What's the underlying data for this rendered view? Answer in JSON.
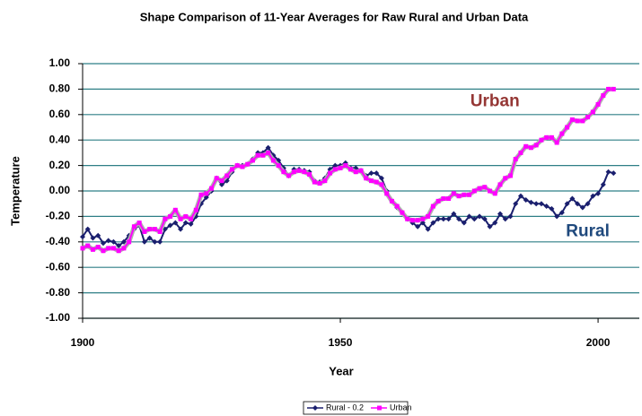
{
  "chart_data": {
    "type": "line",
    "title": "Shape Comparison of 11-Year Averages for Raw Rural and Urban Data",
    "x_label": "Year",
    "y_label": "Temperature",
    "x": [
      1900,
      1901,
      1902,
      1903,
      1904,
      1905,
      1906,
      1907,
      1908,
      1909,
      1910,
      1911,
      1912,
      1913,
      1914,
      1915,
      1916,
      1917,
      1918,
      1919,
      1920,
      1921,
      1922,
      1923,
      1924,
      1925,
      1926,
      1927,
      1928,
      1929,
      1930,
      1931,
      1932,
      1933,
      1934,
      1935,
      1936,
      1937,
      1938,
      1939,
      1940,
      1941,
      1942,
      1943,
      1944,
      1945,
      1946,
      1947,
      1948,
      1949,
      1950,
      1951,
      1952,
      1953,
      1954,
      1955,
      1956,
      1957,
      1958,
      1959,
      1960,
      1961,
      1962,
      1963,
      1964,
      1965,
      1966,
      1967,
      1968,
      1969,
      1970,
      1971,
      1972,
      1973,
      1974,
      1975,
      1976,
      1977,
      1978,
      1979,
      1980,
      1981,
      1982,
      1983,
      1984,
      1985,
      1986,
      1987,
      1988,
      1989,
      1990,
      1991,
      1992,
      1993,
      1994,
      1995,
      1996,
      1997,
      1998,
      1999,
      2000,
      2001,
      2002,
      2003
    ],
    "series": [
      {
        "name": "Rural - 0.2",
        "color": "#1a1f6e",
        "values": [
          -0.36,
          -0.3,
          -0.37,
          -0.35,
          -0.41,
          -0.39,
          -0.4,
          -0.43,
          -0.4,
          -0.35,
          -0.3,
          -0.27,
          -0.4,
          -0.37,
          -0.4,
          -0.4,
          -0.3,
          -0.27,
          -0.25,
          -0.3,
          -0.25,
          -0.26,
          -0.2,
          -0.1,
          -0.05,
          0.0,
          0.1,
          0.05,
          0.08,
          0.15,
          0.2,
          0.2,
          0.21,
          0.25,
          0.3,
          0.3,
          0.34,
          0.28,
          0.24,
          0.18,
          0.12,
          0.17,
          0.17,
          0.16,
          0.15,
          0.08,
          0.07,
          0.1,
          0.17,
          0.2,
          0.2,
          0.22,
          0.18,
          0.18,
          0.16,
          0.12,
          0.14,
          0.14,
          0.1,
          0.0,
          -0.08,
          -0.13,
          -0.17,
          -0.22,
          -0.25,
          -0.28,
          -0.25,
          -0.3,
          -0.25,
          -0.22,
          -0.22,
          -0.22,
          -0.18,
          -0.22,
          -0.25,
          -0.2,
          -0.22,
          -0.2,
          -0.22,
          -0.28,
          -0.25,
          -0.18,
          -0.22,
          -0.2,
          -0.1,
          -0.04,
          -0.07,
          -0.09,
          -0.1,
          -0.1,
          -0.12,
          -0.14,
          -0.2,
          -0.17,
          -0.1,
          -0.06,
          -0.1,
          -0.13,
          -0.1,
          -0.04,
          -0.02,
          0.05,
          0.15,
          0.14
        ]
      },
      {
        "name": "Urban",
        "color": "#ff00ff",
        "values": [
          -0.45,
          -0.43,
          -0.46,
          -0.44,
          -0.47,
          -0.45,
          -0.45,
          -0.47,
          -0.45,
          -0.4,
          -0.28,
          -0.25,
          -0.32,
          -0.3,
          -0.3,
          -0.32,
          -0.22,
          -0.2,
          -0.15,
          -0.22,
          -0.2,
          -0.22,
          -0.15,
          -0.03,
          -0.02,
          0.02,
          0.1,
          0.08,
          0.12,
          0.17,
          0.2,
          0.19,
          0.21,
          0.24,
          0.28,
          0.28,
          0.3,
          0.24,
          0.2,
          0.15,
          0.12,
          0.15,
          0.16,
          0.15,
          0.13,
          0.07,
          0.06,
          0.08,
          0.14,
          0.17,
          0.18,
          0.2,
          0.17,
          0.15,
          0.16,
          0.1,
          0.08,
          0.07,
          0.05,
          -0.02,
          -0.08,
          -0.12,
          -0.17,
          -0.22,
          -0.23,
          -0.23,
          -0.22,
          -0.2,
          -0.12,
          -0.08,
          -0.06,
          -0.06,
          -0.02,
          -0.04,
          -0.03,
          -0.03,
          0.0,
          0.02,
          0.03,
          0.0,
          -0.02,
          0.05,
          0.1,
          0.12,
          0.25,
          0.3,
          0.35,
          0.34,
          0.36,
          0.4,
          0.42,
          0.42,
          0.38,
          0.45,
          0.5,
          0.56,
          0.55,
          0.55,
          0.58,
          0.62,
          0.68,
          0.75,
          0.8,
          0.8
        ]
      }
    ],
    "annotations": [
      {
        "text": "Urban",
        "color": "#953735",
        "x": 1980,
        "y": 0.7
      },
      {
        "text": "Rural",
        "color": "#1f497d",
        "x": 1998,
        "y": -0.32
      }
    ],
    "xlim": [
      1900,
      2008
    ],
    "xticks": [
      1900,
      1950,
      2000
    ],
    "ylim": [
      -1,
      1
    ],
    "yticks": [
      {
        "value": -1,
        "label": "-1.00"
      },
      {
        "value": -0.8,
        "label": "-0.80"
      },
      {
        "value": -0.6,
        "label": "-0.60"
      },
      {
        "value": -0.4,
        "label": "-0.40"
      },
      {
        "value": -0.2,
        "label": "-0.20"
      },
      {
        "value": 0,
        "label": "0.00"
      },
      {
        "value": 0.2,
        "label": "0.20"
      },
      {
        "value": 0.4,
        "label": "0.40"
      },
      {
        "value": 0.6,
        "label": "0.60"
      },
      {
        "value": 0.8,
        "label": "0.80"
      },
      {
        "value": 1,
        "label": "1.00"
      }
    ],
    "grid": true,
    "grid_color": "#2e7f86",
    "legend": "bottom"
  }
}
